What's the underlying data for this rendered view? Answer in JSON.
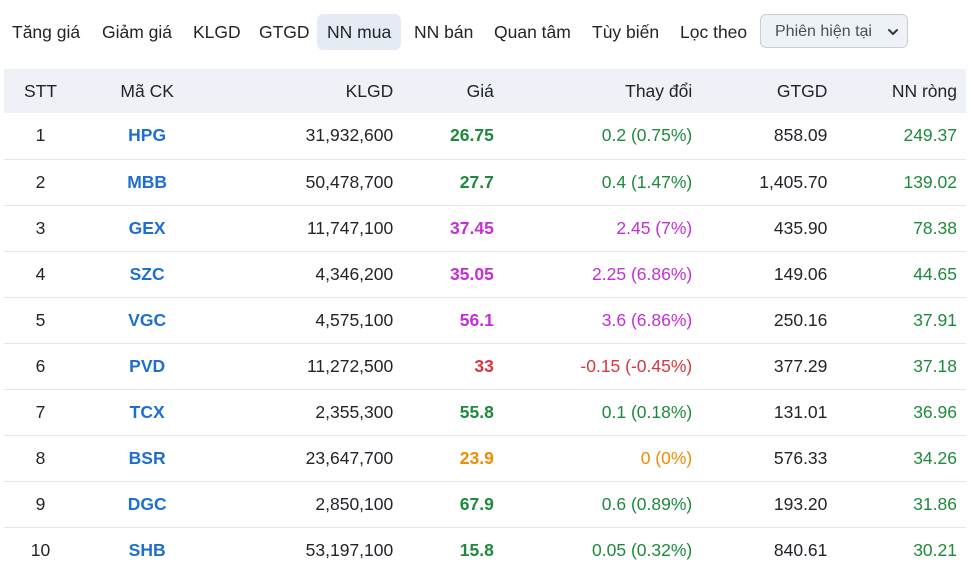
{
  "tabs": [
    {
      "label": "Tăng giá",
      "active": false
    },
    {
      "label": "Giảm giá",
      "active": false
    },
    {
      "label": "KLGD",
      "active": false
    },
    {
      "label": "GTGD",
      "active": false
    },
    {
      "label": "NN mua",
      "active": true
    },
    {
      "label": "NN bán",
      "active": false
    },
    {
      "label": "Quan tâm",
      "active": false
    },
    {
      "label": "Tùy biến",
      "active": false
    }
  ],
  "filter": {
    "label": "Lọc theo",
    "selected": "Phiên hiện tại"
  },
  "table": {
    "headers": {
      "stt": "STT",
      "symbol": "Mã CK",
      "volume": "KLGD",
      "price": "Giá",
      "change": "Thay đổi",
      "value": "GTGD",
      "net_foreign": "NN ròng"
    },
    "rows": [
      {
        "stt": "1",
        "symbol": "HPG",
        "volume": "31,932,600",
        "price": "26.75",
        "change": "0.2 (0.75%)",
        "value": "858.09",
        "net_foreign": "249.37",
        "status": "up"
      },
      {
        "stt": "2",
        "symbol": "MBB",
        "volume": "50,478,700",
        "price": "27.7",
        "change": "0.4 (1.47%)",
        "value": "1,405.70",
        "net_foreign": "139.02",
        "status": "up"
      },
      {
        "stt": "3",
        "symbol": "GEX",
        "volume": "11,747,100",
        "price": "37.45",
        "change": "2.45 (7%)",
        "value": "435.90",
        "net_foreign": "78.38",
        "status": "ceiling"
      },
      {
        "stt": "4",
        "symbol": "SZC",
        "volume": "4,346,200",
        "price": "35.05",
        "change": "2.25 (6.86%)",
        "value": "149.06",
        "net_foreign": "44.65",
        "status": "ceiling"
      },
      {
        "stt": "5",
        "symbol": "VGC",
        "volume": "4,575,100",
        "price": "56.1",
        "change": "3.6 (6.86%)",
        "value": "250.16",
        "net_foreign": "37.91",
        "status": "ceiling"
      },
      {
        "stt": "6",
        "symbol": "PVD",
        "volume": "11,272,500",
        "price": "33",
        "change": "-0.15 (-0.45%)",
        "value": "377.29",
        "net_foreign": "37.18",
        "status": "down"
      },
      {
        "stt": "7",
        "symbol": "TCX",
        "volume": "2,355,300",
        "price": "55.8",
        "change": "0.1 (0.18%)",
        "value": "131.01",
        "net_foreign": "36.96",
        "status": "up"
      },
      {
        "stt": "8",
        "symbol": "BSR",
        "volume": "23,647,700",
        "price": "23.9",
        "change": "0 (0%)",
        "value": "576.33",
        "net_foreign": "34.26",
        "status": "ref"
      },
      {
        "stt": "9",
        "symbol": "DGC",
        "volume": "2,850,100",
        "price": "67.9",
        "change": "0.6 (0.89%)",
        "value": "193.20",
        "net_foreign": "31.86",
        "status": "up"
      },
      {
        "stt": "10",
        "symbol": "SHB",
        "volume": "53,197,100",
        "price": "15.8",
        "change": "0.05 (0.32%)",
        "value": "840.61",
        "net_foreign": "30.21",
        "status": "up"
      }
    ]
  },
  "colors": {
    "up": "#1e8a3c",
    "ceiling": "#c32fd6",
    "down": "#d9363e",
    "ref": "#f08c00",
    "symbol": "#1f6fd1",
    "net_foreign": "#1e8a3c",
    "active_tab_bg": "#e4ebf3",
    "header_bg": "#eef2f6"
  }
}
